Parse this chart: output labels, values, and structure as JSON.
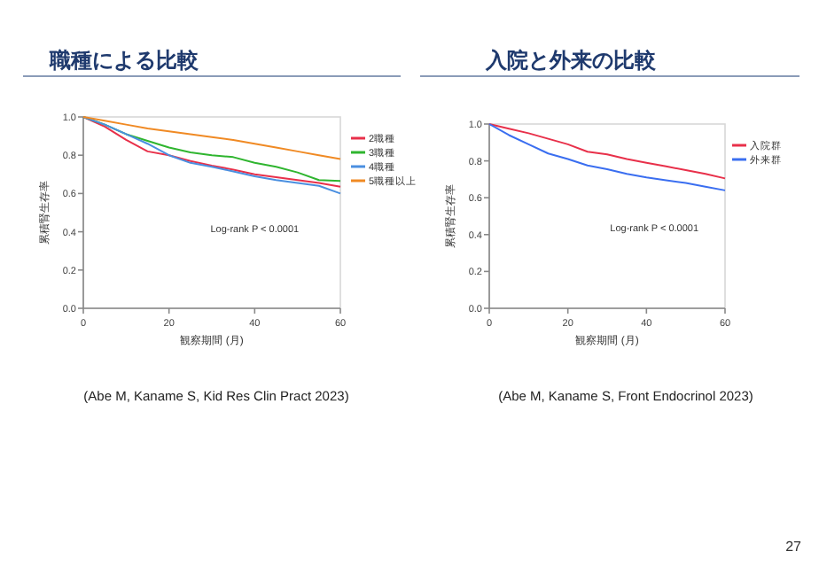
{
  "chart_data": [
    {
      "type": "line",
      "title": "職種による比較",
      "xlabel": "観察期間 (月)",
      "ylabel": "累積腎生存率",
      "x": [
        0,
        5,
        10,
        15,
        20,
        25,
        30,
        35,
        40,
        45,
        50,
        55,
        60
      ],
      "series": [
        {
          "name": "2職種",
          "color": "#e8304a",
          "values": [
            1.0,
            0.95,
            0.88,
            0.82,
            0.8,
            0.77,
            0.745,
            0.725,
            0.7,
            0.685,
            0.67,
            0.655,
            0.635
          ]
        },
        {
          "name": "3職種",
          "color": "#2fb52f",
          "values": [
            1.0,
            0.96,
            0.91,
            0.875,
            0.84,
            0.815,
            0.8,
            0.79,
            0.76,
            0.74,
            0.71,
            0.67,
            0.665
          ]
        },
        {
          "name": "4職種",
          "color": "#4a8fe0",
          "values": [
            1.0,
            0.96,
            0.91,
            0.86,
            0.8,
            0.76,
            0.74,
            0.715,
            0.69,
            0.67,
            0.655,
            0.64,
            0.6
          ]
        },
        {
          "name": "5職種以上",
          "color": "#f08a24",
          "values": [
            1.0,
            0.98,
            0.96,
            0.94,
            0.925,
            0.91,
            0.895,
            0.88,
            0.86,
            0.84,
            0.82,
            0.8,
            0.78
          ]
        }
      ],
      "xlim": [
        0,
        60
      ],
      "xticks": [
        0,
        20,
        40,
        60
      ],
      "ylim": [
        0,
        1
      ],
      "yticks": [
        {
          "value": 0,
          "label": "0.0"
        },
        {
          "value": 0.2,
          "label": "0.2"
        },
        {
          "value": 0.4,
          "label": "0.4"
        },
        {
          "value": 0.6,
          "label": "0.6"
        },
        {
          "value": 0.8,
          "label": "0.8"
        },
        {
          "value": 1,
          "label": "1.0"
        }
      ],
      "legend": "right",
      "grid": false,
      "annotations": [
        "Log-rank P < 0.0001",
        "(Abe M, Kaname S, Kid Res Clin Pract 2023)"
      ]
    },
    {
      "type": "line",
      "title": "入院と外来の比較",
      "xlabel": "観察期間 (月)",
      "ylabel": "累積腎生存率",
      "x": [
        0,
        5,
        10,
        15,
        20,
        25,
        30,
        35,
        40,
        45,
        50,
        55,
        60
      ],
      "series": [
        {
          "name": "入院群",
          "color": "#e8304a",
          "values": [
            1.0,
            0.975,
            0.95,
            0.92,
            0.89,
            0.85,
            0.835,
            0.81,
            0.79,
            0.77,
            0.75,
            0.73,
            0.705
          ]
        },
        {
          "name": "外来群",
          "color": "#3a6ef0",
          "values": [
            1.0,
            0.94,
            0.89,
            0.84,
            0.81,
            0.775,
            0.755,
            0.73,
            0.71,
            0.695,
            0.68,
            0.66,
            0.64
          ]
        }
      ],
      "xlim": [
        0,
        60
      ],
      "xticks": [
        0,
        20,
        40,
        60
      ],
      "ylim": [
        0,
        1
      ],
      "yticks": [
        {
          "value": 0,
          "label": "0.0"
        },
        {
          "value": 0.2,
          "label": "0.2"
        },
        {
          "value": 0.4,
          "label": "0.4"
        },
        {
          "value": 0.6,
          "label": "0.6"
        },
        {
          "value": 0.8,
          "label": "0.8"
        },
        {
          "value": 1,
          "label": "1.0"
        }
      ],
      "legend": "right",
      "grid": false,
      "annotations": [
        "Log-rank P < 0.0001",
        "(Abe M, Kaname S, Front Endocrinol 2023)",
        "27"
      ]
    }
  ]
}
